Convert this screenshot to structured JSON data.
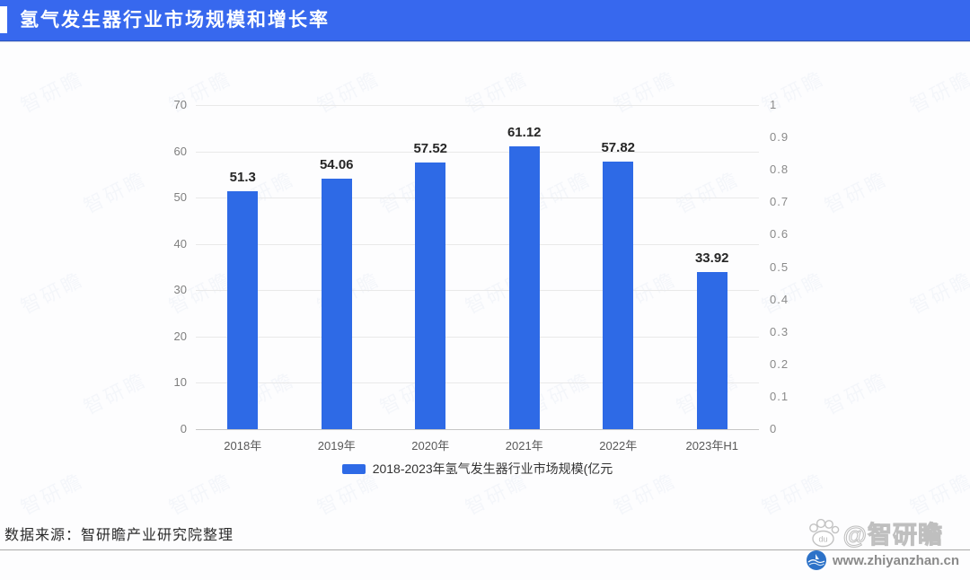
{
  "header": {
    "title": "氢气发生器行业市场规模和增长率",
    "bar_color": "#3768ee"
  },
  "chart_data": {
    "type": "bar",
    "title": "氢气发生器行业市场规模和增长率",
    "categories": [
      "2018年",
      "2019年",
      "2020年",
      "2021年",
      "2022年",
      "2023年H1"
    ],
    "values": [
      51.3,
      54.06,
      57.52,
      61.12,
      57.82,
      33.92
    ],
    "value_labels": [
      "51.3",
      "54.06",
      "57.52",
      "61.12",
      "57.82",
      "33.92"
    ],
    "series_name": "2018-2023年氢气发生器行业市场规模(亿元",
    "legend": "2018-2023年氢气发生器行业市场规模(亿元",
    "legend_position": "bottom",
    "grid": true,
    "bar_color": "#2e6ae6",
    "left_axis": {
      "min": 0,
      "max": 70,
      "step": 10,
      "ticks": [
        "0",
        "10",
        "20",
        "30",
        "40",
        "50",
        "60",
        "70"
      ]
    },
    "right_axis": {
      "min": 0,
      "max": 1,
      "step": 0.1,
      "ticks": [
        "0",
        "0.1",
        "0.2",
        "0.3",
        "0.4",
        "0.5",
        "0.6",
        "0.7",
        "0.8",
        "0.9",
        "1"
      ]
    }
  },
  "footer": {
    "source": "数据来源：智研瞻产业研究院整理"
  },
  "watermark": {
    "brand": "@智研瞻",
    "url": "www.zhiyanzhan.cn",
    "pattern_text": "智研瞻",
    "paw_label": "du"
  }
}
